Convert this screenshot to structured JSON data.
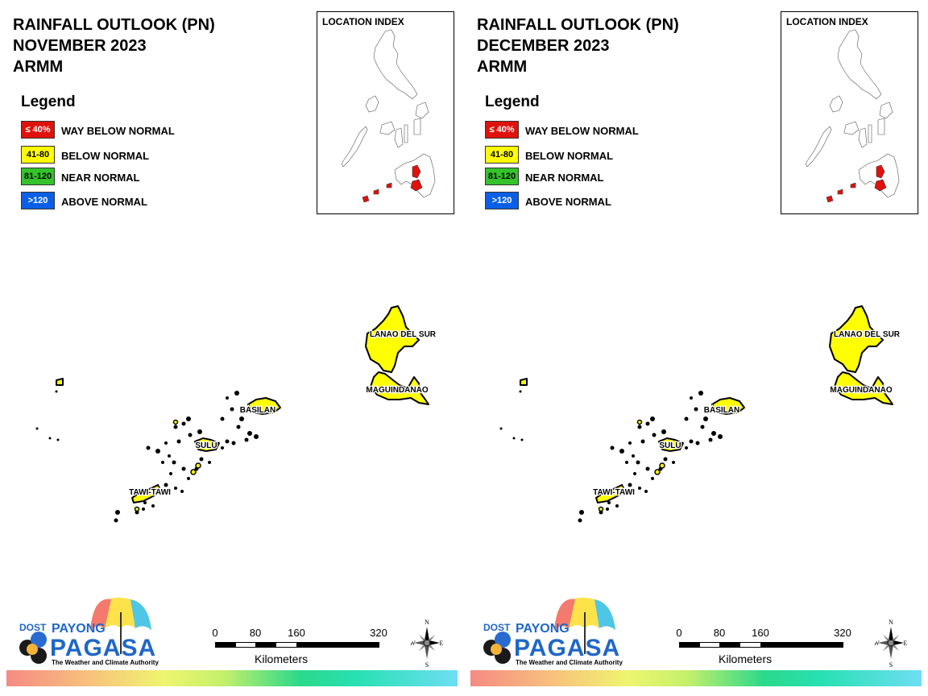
{
  "panels": [
    {
      "title_lines": [
        "RAINFALL OUTLOOK (PN)",
        "NOVEMBER 2023",
        "ARMM"
      ],
      "legend": {
        "title": "Legend",
        "items": [
          {
            "range": "≤ 40%",
            "label": "WAY BELOW NORMAL",
            "color": "#e0120c",
            "text_color": "#ffffff"
          },
          {
            "range": "41-80",
            "label": "BELOW NORMAL",
            "color": "#ffff00",
            "text_color": "#000000"
          },
          {
            "range": "81-120",
            "label": "NEAR NORMAL",
            "color": "#35c22c",
            "text_color": "#000000"
          },
          {
            "range": ">120",
            "label": "ABOVE NORMAL",
            "color": "#0a5fe6",
            "text_color": "#ffffff"
          }
        ]
      },
      "location_index": {
        "title": "LOCATION INDEX"
      },
      "provinces": [
        {
          "name": "LANAO DEL SUR",
          "category": "BELOW NORMAL"
        },
        {
          "name": "MAGUINDANAO",
          "category": "BELOW NORMAL"
        },
        {
          "name": "BASILAN",
          "category": "BELOW NORMAL"
        },
        {
          "name": "SULU",
          "category": "BELOW NORMAL"
        },
        {
          "name": "TAWI-TAWI",
          "category": "BELOW NORMAL"
        }
      ],
      "logo": {
        "agency": "DOST",
        "line1": "PAYONG",
        "line2": "PAGASA",
        "tagline": "The Weather and Climate Authority"
      },
      "scale_bar": {
        "ticks": [
          "0",
          "80",
          "160",
          "320"
        ],
        "units": "Kilometers"
      },
      "compass": {
        "n": "N",
        "s": "S",
        "e": "E",
        "w": "W"
      }
    },
    {
      "title_lines": [
        "RAINFALL OUTLOOK (PN)",
        "DECEMBER 2023",
        "ARMM"
      ],
      "legend": {
        "title": "Legend",
        "items": [
          {
            "range": "≤ 40%",
            "label": "WAY BELOW NORMAL",
            "color": "#e0120c",
            "text_color": "#ffffff"
          },
          {
            "range": "41-80",
            "label": "BELOW NORMAL",
            "color": "#ffff00",
            "text_color": "#000000"
          },
          {
            "range": "81-120",
            "label": "NEAR NORMAL",
            "color": "#35c22c",
            "text_color": "#000000"
          },
          {
            "range": ">120",
            "label": "ABOVE NORMAL",
            "color": "#0a5fe6",
            "text_color": "#ffffff"
          }
        ]
      },
      "location_index": {
        "title": "LOCATION INDEX"
      },
      "provinces": [
        {
          "name": "LANAO DEL SUR",
          "category": "BELOW NORMAL"
        },
        {
          "name": "MAGUINDANAO",
          "category": "BELOW NORMAL"
        },
        {
          "name": "BASILAN",
          "category": "BELOW NORMAL"
        },
        {
          "name": "SULU",
          "category": "BELOW NORMAL"
        },
        {
          "name": "TAWI-TAWI",
          "category": "BELOW NORMAL"
        }
      ],
      "logo": {
        "agency": "DOST",
        "line1": "PAYONG",
        "line2": "PAGASA",
        "tagline": "The Weather and Climate Authority"
      },
      "scale_bar": {
        "ticks": [
          "0",
          "80",
          "160",
          "320"
        ],
        "units": "Kilometers"
      },
      "compass": {
        "n": "N",
        "s": "S",
        "e": "E",
        "w": "W"
      }
    }
  ]
}
